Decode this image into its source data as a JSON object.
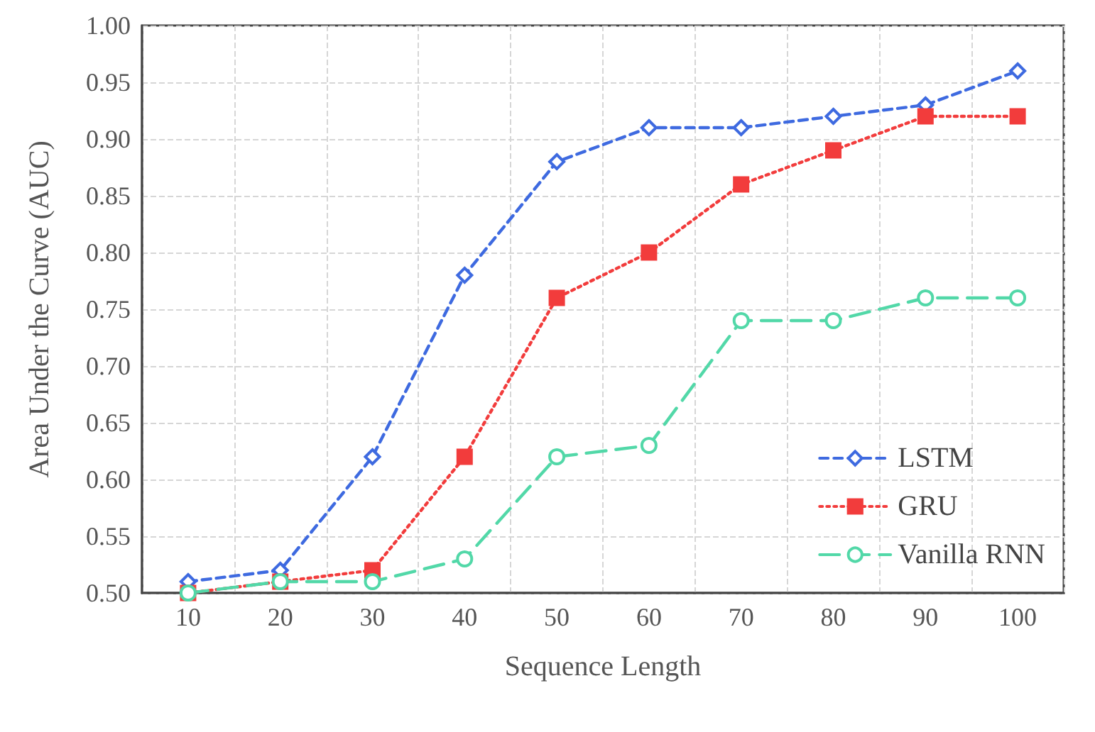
{
  "chart_data": {
    "type": "line",
    "xlabel": "Sequence Length",
    "ylabel": "Area Under the Curve (AUC)",
    "categories": [
      "10",
      "20",
      "30",
      "40",
      "50",
      "60",
      "70",
      "80",
      "90",
      "100"
    ],
    "series": [
      {
        "name": "LSTM",
        "color": "#3e6ae0",
        "marker": "diamond",
        "line_style": "dashed",
        "values": [
          0.51,
          0.52,
          0.62,
          0.78,
          0.88,
          0.91,
          0.91,
          0.92,
          0.93,
          0.96
        ]
      },
      {
        "name": "GRU",
        "color": "#f23c3c",
        "marker": "square",
        "line_style": "dotted",
        "values": [
          0.5,
          0.51,
          0.52,
          0.62,
          0.76,
          0.8,
          0.86,
          0.89,
          0.92,
          0.92
        ]
      },
      {
        "name": "Vanilla RNN",
        "color": "#52d8a8",
        "marker": "circle",
        "line_style": "dashed",
        "values": [
          0.5,
          0.51,
          0.51,
          0.53,
          0.62,
          0.63,
          0.74,
          0.74,
          0.76,
          0.76
        ]
      }
    ],
    "ylim": [
      0.5,
      1.0
    ],
    "yticks": [
      {
        "value": 0.5,
        "label": "0.50"
      },
      {
        "value": 0.55,
        "label": "0.55"
      },
      {
        "value": 0.6,
        "label": "0.60"
      },
      {
        "value": 0.65,
        "label": "0.65"
      },
      {
        "value": 0.7,
        "label": "0.70"
      },
      {
        "value": 0.75,
        "label": "0.75"
      },
      {
        "value": 0.8,
        "label": "0.80"
      },
      {
        "value": 0.85,
        "label": "0.85"
      },
      {
        "value": 0.9,
        "label": "0.90"
      },
      {
        "value": 0.95,
        "label": "0.95"
      },
      {
        "value": 1.0,
        "label": "1.00"
      }
    ],
    "grid": true,
    "legend": "bottom right"
  }
}
